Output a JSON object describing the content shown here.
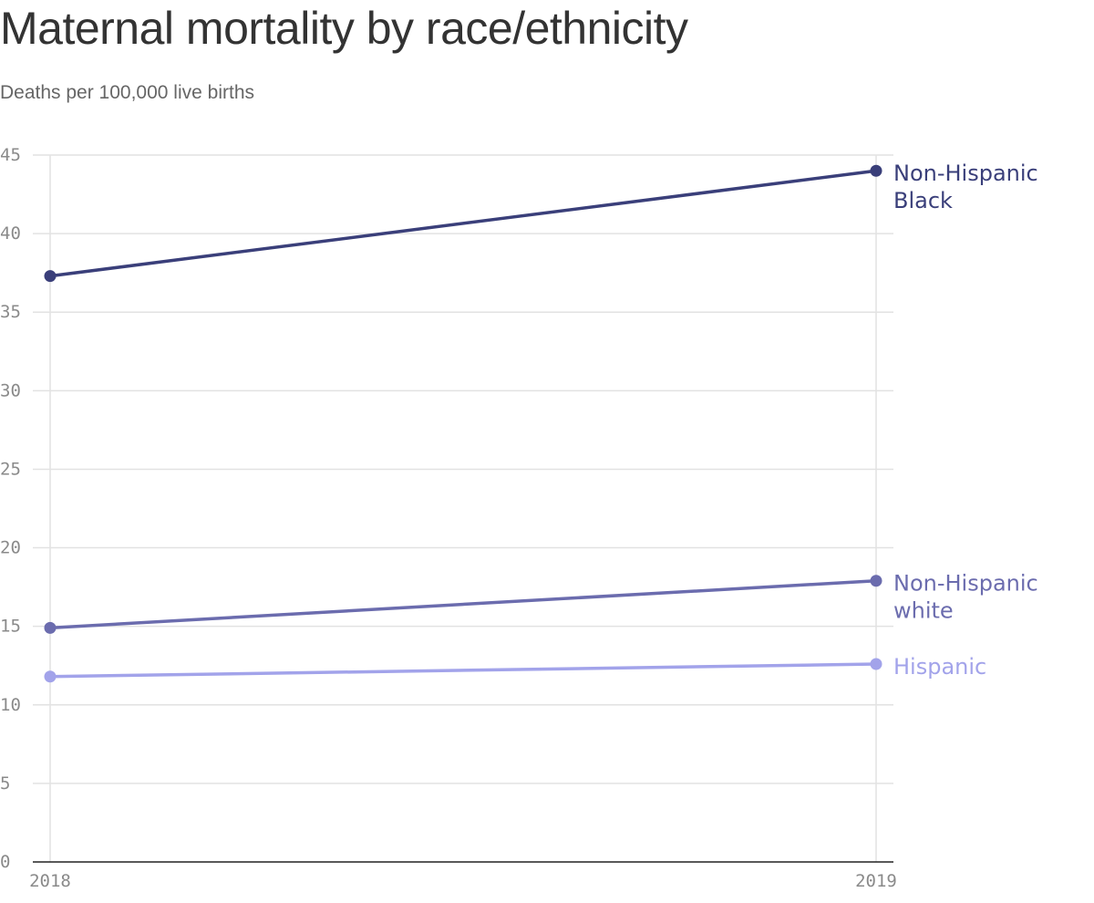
{
  "chart_data": {
    "type": "line",
    "title": "Maternal mortality by race/ethnicity",
    "subtitle": "Deaths per 100,000 live births",
    "x": [
      "2018",
      "2019"
    ],
    "ylim": [
      0,
      45
    ],
    "yticks": [
      0,
      5,
      10,
      15,
      20,
      25,
      30,
      35,
      40,
      45
    ],
    "grid": true,
    "legend": "direct-labels-right",
    "series": [
      {
        "name": "Non-Hispanic Black",
        "label_lines": [
          "Non-Hispanic",
          "Black"
        ],
        "values": [
          37.3,
          44.0
        ],
        "color": "#3a3f7a"
      },
      {
        "name": "Non-Hispanic white",
        "label_lines": [
          "Non-Hispanic",
          "white"
        ],
        "values": [
          14.9,
          17.9
        ],
        "color": "#6b6cae"
      },
      {
        "name": "Hispanic",
        "label_lines": [
          "Hispanic"
        ],
        "values": [
          11.8,
          12.6
        ],
        "color": "#a2a3ea"
      }
    ]
  }
}
